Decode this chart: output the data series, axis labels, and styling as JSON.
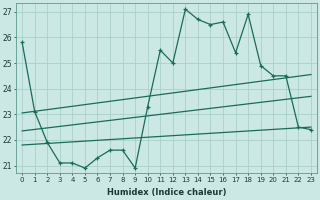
{
  "xlabel": "Humidex (Indice chaleur)",
  "bg_color": "#cce8e4",
  "grid_color": "#aacfcb",
  "line_color": "#1a6b5a",
  "x": [
    0,
    1,
    2,
    3,
    4,
    5,
    6,
    7,
    8,
    9,
    10,
    11,
    12,
    13,
    14,
    15,
    16,
    17,
    18,
    19,
    20,
    21,
    22,
    23
  ],
  "y_jagged": [
    25.8,
    23.1,
    21.9,
    21.1,
    21.1,
    20.9,
    21.3,
    21.6,
    21.6,
    20.9,
    23.3,
    25.5,
    25.0,
    27.1,
    26.7,
    26.5,
    26.6,
    25.4,
    26.9,
    24.9,
    24.5,
    24.5,
    22.5,
    22.4
  ],
  "trend_lines": [
    {
      "x0": 0,
      "y0": 23.05,
      "x1": 23,
      "y1": 24.55
    },
    {
      "x0": 0,
      "y0": 22.35,
      "x1": 23,
      "y1": 23.7
    },
    {
      "x0": 0,
      "y0": 21.8,
      "x1": 23,
      "y1": 22.5
    }
  ],
  "ylim": [
    20.7,
    27.35
  ],
  "yticks": [
    21,
    22,
    23,
    24,
    25,
    26,
    27
  ],
  "xticks": [
    0,
    1,
    2,
    3,
    4,
    5,
    6,
    7,
    8,
    9,
    10,
    11,
    12,
    13,
    14,
    15,
    16,
    17,
    18,
    19,
    20,
    21,
    22,
    23
  ]
}
